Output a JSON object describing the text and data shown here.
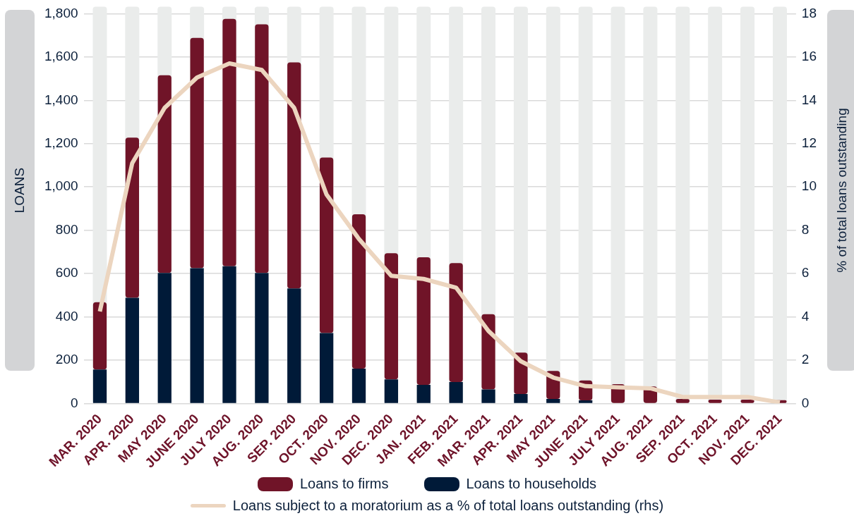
{
  "chart_data": {
    "type": "bar",
    "stacked": true,
    "ylabel": "LOANS",
    "y2label": "% of total loans outstanding",
    "categories": [
      "MAR. 2020",
      "APR. 2020",
      "MAY 2020",
      "JUNE 2020",
      "JULY 2020",
      "AUG. 2020",
      "SEP. 2020",
      "OCT. 2020",
      "NOV. 2020",
      "DEC. 2020",
      "JAN. 2021",
      "FEB. 2021",
      "MAR. 2021",
      "APR. 2021",
      "MAY 2021",
      "JUNE 2021",
      "JULY 2021",
      "AUG. 2021",
      "SEP. 2021",
      "OCT. 2021",
      "NOV. 2021",
      "DEC. 2021"
    ],
    "series": [
      {
        "name": "Loans to households",
        "color": "#001a38",
        "values": [
          157,
          488,
          603,
          625,
          634,
          603,
          531,
          325,
          161,
          111,
          86,
          99,
          65,
          44,
          21,
          14,
          0,
          0,
          0,
          0,
          0,
          0
        ]
      },
      {
        "name": "Loans to firms",
        "color": "#701428",
        "values": [
          311,
          740,
          913,
          1063,
          1142,
          1148,
          1044,
          811,
          713,
          583,
          589,
          549,
          347,
          191,
          129,
          92,
          89,
          79,
          21,
          18,
          18,
          15
        ]
      },
      {
        "name": "Loans subject to a moratorium as a % of total loans outstanding (rhs)",
        "type": "line",
        "axis": "y2",
        "color": "#ecd5bf",
        "values": [
          4.25,
          11.1,
          13.65,
          15.05,
          15.7,
          15.4,
          13.65,
          9.65,
          7.6,
          5.9,
          5.75,
          5.35,
          3.35,
          1.95,
          1.2,
          0.8,
          0.75,
          0.7,
          0.3,
          0.3,
          0.3,
          0.05
        ]
      }
    ],
    "ylim": [
      0,
      1800
    ],
    "yticks": [
      0,
      {
        "value": 200,
        "label": "200"
      },
      {
        "value": 400,
        "label": "400"
      },
      {
        "value": 600,
        "label": "600"
      },
      {
        "value": 800,
        "label": "800"
      },
      {
        "value": 1000,
        "label": "1,000"
      },
      {
        "value": 1200,
        "label": "1,200"
      },
      {
        "value": 1400,
        "label": "1,400"
      },
      {
        "value": 1600,
        "label": "1,600"
      },
      {
        "value": 1800,
        "label": "1,800"
      }
    ],
    "y2lim": [
      0,
      18
    ],
    "y2ticks": [
      0,
      2,
      4,
      6,
      8,
      10,
      12,
      14,
      16,
      18
    ],
    "grid": "y",
    "legend": "bottom",
    "marker": "none",
    "line_style": "solid"
  }
}
